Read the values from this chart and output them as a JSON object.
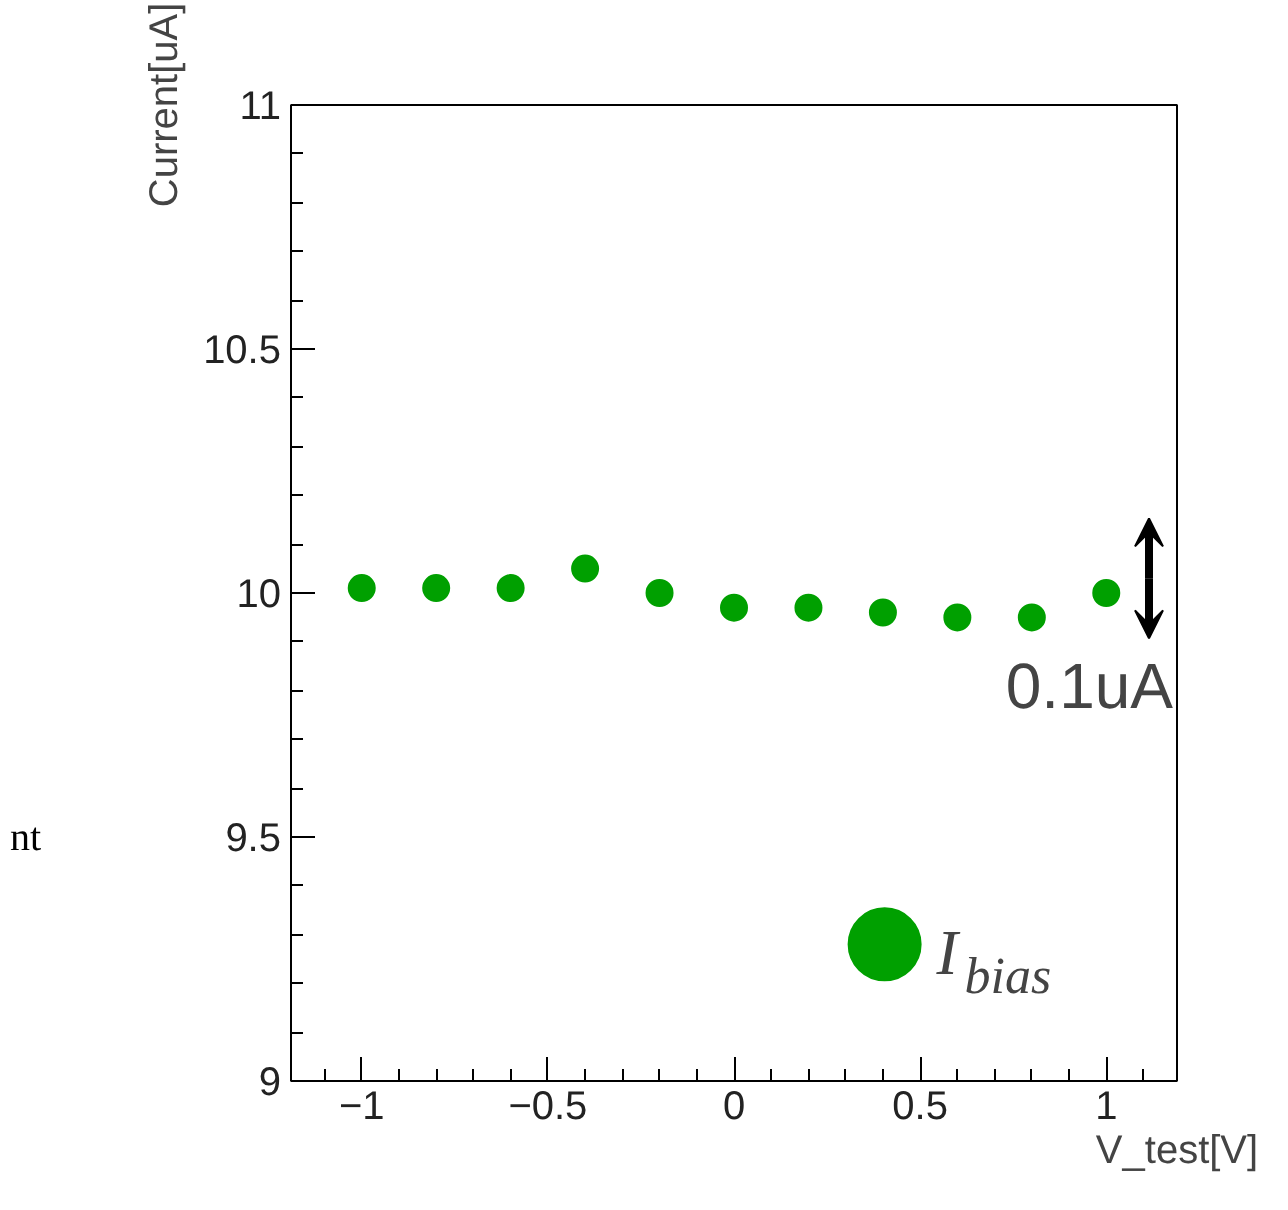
{
  "chart_data": {
    "type": "scatter",
    "xlabel": "V_test[V]",
    "ylabel": "Current[uA]",
    "x": [
      -1,
      -0.8,
      -0.6,
      -0.4,
      -0.2,
      0,
      0.2,
      0.4,
      0.6,
      0.8,
      1
    ],
    "series": [
      {
        "name": "I$_{bias}$",
        "color": "#00a000",
        "values": [
          10.01,
          10.01,
          10.01,
          10.05,
          10.0,
          9.97,
          9.97,
          9.96,
          9.95,
          9.95,
          10.0
        ]
      }
    ],
    "xlim": [
      -1.19,
      1.19
    ],
    "ylim": [
      9,
      11
    ],
    "xticks": [
      {
        "value": -1,
        "label": "−1"
      },
      {
        "value": -0.5,
        "label": "−0.5"
      },
      0,
      0.5,
      1
    ],
    "yticks": [
      9,
      9.5,
      10,
      10.5,
      11
    ],
    "annotations": [
      "0.1uA",
      "nt"
    ],
    "marker": "circle",
    "legend": "bottom right",
    "grid": false
  }
}
